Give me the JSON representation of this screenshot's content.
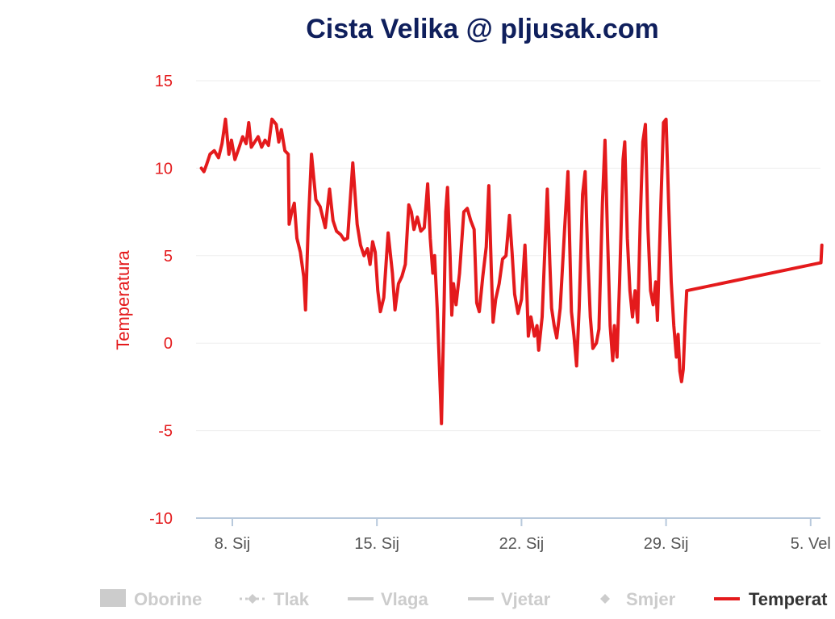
{
  "chart_data": {
    "type": "line",
    "title": "Cista Velika @ pljusak.com",
    "ylabel": "Temperatura",
    "xlabel": "",
    "ylim": [
      -10,
      15
    ],
    "yticks": [
      15,
      10,
      5,
      0,
      -5,
      -10
    ],
    "xlim": [
      "2021-01-06",
      "2021-02-06"
    ],
    "xticks": [
      {
        "date": "2021-01-08",
        "label": "8. Sij"
      },
      {
        "date": "2021-01-15",
        "label": "15. Sij"
      },
      {
        "date": "2021-01-22",
        "label": "22. Sij"
      },
      {
        "date": "2021-01-29",
        "label": "29. Sij"
      },
      {
        "date": "2021-02-05",
        "label": "5. Vel"
      }
    ],
    "grid": true,
    "legend_position": "bottom",
    "legend": [
      {
        "name": "Oborine",
        "symbol": "square",
        "visible": false
      },
      {
        "name": "Tlak",
        "symbol": "dash-diamond",
        "visible": false
      },
      {
        "name": "Vlaga",
        "symbol": "line",
        "visible": false
      },
      {
        "name": "Vjetar",
        "symbol": "line",
        "visible": false
      },
      {
        "name": "Smjer",
        "symbol": "diamond",
        "visible": false
      },
      {
        "name": "Temperat",
        "symbol": "line",
        "visible": true
      }
    ],
    "series": [
      {
        "name": "Temperatura",
        "color": "#e41a1c",
        "points": [
          [
            "2021-01-06 12:00",
            10.0
          ],
          [
            "2021-01-06 15:00",
            9.8
          ],
          [
            "2021-01-06 18:00",
            10.2
          ],
          [
            "2021-01-06 22:00",
            10.8
          ],
          [
            "2021-01-07 03:00",
            11.0
          ],
          [
            "2021-01-07 08:00",
            10.6
          ],
          [
            "2021-01-07 12:00",
            11.4
          ],
          [
            "2021-01-07 16:00",
            12.8
          ],
          [
            "2021-01-07 20:00",
            10.8
          ],
          [
            "2021-01-07 23:00",
            11.6
          ],
          [
            "2021-01-08 03:00",
            10.5
          ],
          [
            "2021-01-08 08:00",
            11.2
          ],
          [
            "2021-01-08 12:00",
            11.8
          ],
          [
            "2021-01-08 16:00",
            11.4
          ],
          [
            "2021-01-08 19:00",
            12.6
          ],
          [
            "2021-01-08 22:00",
            11.2
          ],
          [
            "2021-01-09 02:00",
            11.5
          ],
          [
            "2021-01-09 06:00",
            11.8
          ],
          [
            "2021-01-09 10:00",
            11.2
          ],
          [
            "2021-01-09 14:00",
            11.6
          ],
          [
            "2021-01-09 18:00",
            11.3
          ],
          [
            "2021-01-09 22:00",
            12.8
          ],
          [
            "2021-01-10 03:00",
            12.5
          ],
          [
            "2021-01-10 06:00",
            11.5
          ],
          [
            "2021-01-10 09:00",
            12.2
          ],
          [
            "2021-01-10 13:00",
            11.0
          ],
          [
            "2021-01-10 17:00",
            10.8
          ],
          [
            "2021-01-10 18:00",
            6.8
          ],
          [
            "2021-01-10 21:00",
            7.5
          ],
          [
            "2021-01-11 00:00",
            8.0
          ],
          [
            "2021-01-11 03:00",
            6.0
          ],
          [
            "2021-01-11 07:00",
            5.2
          ],
          [
            "2021-01-11 11:00",
            3.8
          ],
          [
            "2021-01-11 13:00",
            1.9
          ],
          [
            "2021-01-11 16:00",
            6.5
          ],
          [
            "2021-01-11 20:00",
            10.8
          ],
          [
            "2021-01-12 01:00",
            8.2
          ],
          [
            "2021-01-12 06:00",
            7.8
          ],
          [
            "2021-01-12 12:00",
            6.6
          ],
          [
            "2021-01-12 17:00",
            8.8
          ],
          [
            "2021-01-12 21:00",
            7.0
          ],
          [
            "2021-01-13 01:00",
            6.4
          ],
          [
            "2021-01-13 06:00",
            6.2
          ],
          [
            "2021-01-13 10:00",
            5.9
          ],
          [
            "2021-01-13 14:00",
            6.0
          ],
          [
            "2021-01-13 20:00",
            10.3
          ],
          [
            "2021-01-14 01:00",
            6.8
          ],
          [
            "2021-01-14 05:00",
            5.6
          ],
          [
            "2021-01-14 09:00",
            5.0
          ],
          [
            "2021-01-14 13:00",
            5.4
          ],
          [
            "2021-01-14 16:00",
            4.5
          ],
          [
            "2021-01-14 19:00",
            5.8
          ],
          [
            "2021-01-14 22:00",
            5.2
          ],
          [
            "2021-01-15 01:00",
            3.0
          ],
          [
            "2021-01-15 04:00",
            1.8
          ],
          [
            "2021-01-15 08:00",
            2.6
          ],
          [
            "2021-01-15 13:00",
            6.3
          ],
          [
            "2021-01-15 18:00",
            4.0
          ],
          [
            "2021-01-15 21:00",
            1.9
          ],
          [
            "2021-01-16 01:00",
            3.4
          ],
          [
            "2021-01-16 05:00",
            3.8
          ],
          [
            "2021-01-16 09:00",
            4.5
          ],
          [
            "2021-01-16 13:00",
            7.9
          ],
          [
            "2021-01-16 16:00",
            7.5
          ],
          [
            "2021-01-16 19:00",
            6.5
          ],
          [
            "2021-01-16 23:00",
            7.2
          ],
          [
            "2021-01-17 03:00",
            6.4
          ],
          [
            "2021-01-17 07:00",
            6.6
          ],
          [
            "2021-01-17 11:00",
            9.1
          ],
          [
            "2021-01-17 14:00",
            6.0
          ],
          [
            "2021-01-17 17:00",
            4.0
          ],
          [
            "2021-01-17 19:00",
            5.0
          ],
          [
            "2021-01-17 22:00",
            2.0
          ],
          [
            "2021-01-18 00:00",
            -0.5
          ],
          [
            "2021-01-18 03:00",
            -4.6
          ],
          [
            "2021-01-18 06:00",
            2.0
          ],
          [
            "2021-01-18 08:00",
            7.5
          ],
          [
            "2021-01-18 10:00",
            8.9
          ],
          [
            "2021-01-18 13:00",
            5.0
          ],
          [
            "2021-01-18 15:00",
            1.6
          ],
          [
            "2021-01-18 17:00",
            3.4
          ],
          [
            "2021-01-18 20:00",
            2.2
          ],
          [
            "2021-01-19 00:00",
            4.0
          ],
          [
            "2021-01-19 05:00",
            7.5
          ],
          [
            "2021-01-19 09:00",
            7.7
          ],
          [
            "2021-01-19 13:00",
            7.0
          ],
          [
            "2021-01-19 17:00",
            6.5
          ],
          [
            "2021-01-19 20:00",
            2.3
          ],
          [
            "2021-01-19 23:00",
            1.8
          ],
          [
            "2021-01-20 03:00",
            3.8
          ],
          [
            "2021-01-20 07:00",
            5.5
          ],
          [
            "2021-01-20 10:00",
            9.0
          ],
          [
            "2021-01-20 13:00",
            4.0
          ],
          [
            "2021-01-20 15:00",
            1.2
          ],
          [
            "2021-01-20 18:00",
            2.5
          ],
          [
            "2021-01-20 22:00",
            3.4
          ],
          [
            "2021-01-21 02:00",
            4.8
          ],
          [
            "2021-01-21 06:00",
            5.0
          ],
          [
            "2021-01-21 10:00",
            7.3
          ],
          [
            "2021-01-21 13:00",
            5.2
          ],
          [
            "2021-01-21 16:00",
            2.8
          ],
          [
            "2021-01-21 20:00",
            1.7
          ],
          [
            "2021-01-22 00:00",
            2.5
          ],
          [
            "2021-01-22 04:00",
            5.6
          ],
          [
            "2021-01-22 06:00",
            3.2
          ],
          [
            "2021-01-22 08:00",
            0.4
          ],
          [
            "2021-01-22 11:00",
            1.5
          ],
          [
            "2021-01-22 15:00",
            0.4
          ],
          [
            "2021-01-22 18:00",
            1.0
          ],
          [
            "2021-01-22 20:00",
            -0.4
          ],
          [
            "2021-01-23 00:00",
            1.5
          ],
          [
            "2021-01-23 06:00",
            8.8
          ],
          [
            "2021-01-23 09:00",
            4.5
          ],
          [
            "2021-01-23 11:00",
            2.0
          ],
          [
            "2021-01-23 14:00",
            1.0
          ],
          [
            "2021-01-23 17:00",
            0.3
          ],
          [
            "2021-01-23 21:00",
            2.0
          ],
          [
            "2021-01-24 02:00",
            6.4
          ],
          [
            "2021-01-24 06:00",
            9.8
          ],
          [
            "2021-01-24 08:00",
            5.8
          ],
          [
            "2021-01-24 10:00",
            1.8
          ],
          [
            "2021-01-24 13:00",
            0.4
          ],
          [
            "2021-01-24 16:00",
            -1.3
          ],
          [
            "2021-01-24 19:00",
            2.0
          ],
          [
            "2021-01-24 23:00",
            8.5
          ],
          [
            "2021-01-25 02:00",
            9.8
          ],
          [
            "2021-01-25 05:00",
            5.0
          ],
          [
            "2021-01-25 08:00",
            1.5
          ],
          [
            "2021-01-25 11:00",
            -0.3
          ],
          [
            "2021-01-25 15:00",
            0.0
          ],
          [
            "2021-01-25 18:00",
            0.8
          ],
          [
            "2021-01-25 22:00",
            8.0
          ],
          [
            "2021-01-26 01:00",
            11.6
          ],
          [
            "2021-01-26 04:00",
            6.0
          ],
          [
            "2021-01-26 07:00",
            1.0
          ],
          [
            "2021-01-26 10:00",
            -1.0
          ],
          [
            "2021-01-26 12:00",
            1.0
          ],
          [
            "2021-01-26 15:00",
            -0.8
          ],
          [
            "2021-01-26 18:00",
            3.5
          ],
          [
            "2021-01-26 22:00",
            10.5
          ],
          [
            "2021-01-27 00:00",
            11.5
          ],
          [
            "2021-01-27 03:00",
            6.0
          ],
          [
            "2021-01-27 06:00",
            3.0
          ],
          [
            "2021-01-27 09:00",
            1.5
          ],
          [
            "2021-01-27 12:00",
            3.0
          ],
          [
            "2021-01-27 15:00",
            1.2
          ],
          [
            "2021-01-27 18:00",
            7.0
          ],
          [
            "2021-01-27 21:00",
            11.5
          ],
          [
            "2021-01-28 00:00",
            12.5
          ],
          [
            "2021-01-28 03:00",
            6.5
          ],
          [
            "2021-01-28 06:00",
            3.0
          ],
          [
            "2021-01-28 09:00",
            2.2
          ],
          [
            "2021-01-28 12:00",
            3.5
          ],
          [
            "2021-01-28 14:00",
            1.3
          ],
          [
            "2021-01-28 18:00",
            8.0
          ],
          [
            "2021-01-28 21:00",
            12.6
          ],
          [
            "2021-01-29 00:00",
            12.8
          ],
          [
            "2021-01-29 03:00",
            8.0
          ],
          [
            "2021-01-29 06:00",
            3.5
          ],
          [
            "2021-01-29 09:00",
            1.0
          ],
          [
            "2021-01-29 12:00",
            -0.8
          ],
          [
            "2021-01-29 14:00",
            0.5
          ],
          [
            "2021-01-29 16:00",
            -1.6
          ],
          [
            "2021-01-29 18:00",
            -2.2
          ],
          [
            "2021-01-29 20:00",
            -1.5
          ],
          [
            "2021-01-29 22:00",
            1.0
          ],
          [
            "2021-01-30 00:00",
            3.0
          ],
          [
            "2021-02-05 12:00",
            4.6
          ],
          [
            "2021-02-05 13:00",
            5.6
          ]
        ]
      }
    ]
  }
}
